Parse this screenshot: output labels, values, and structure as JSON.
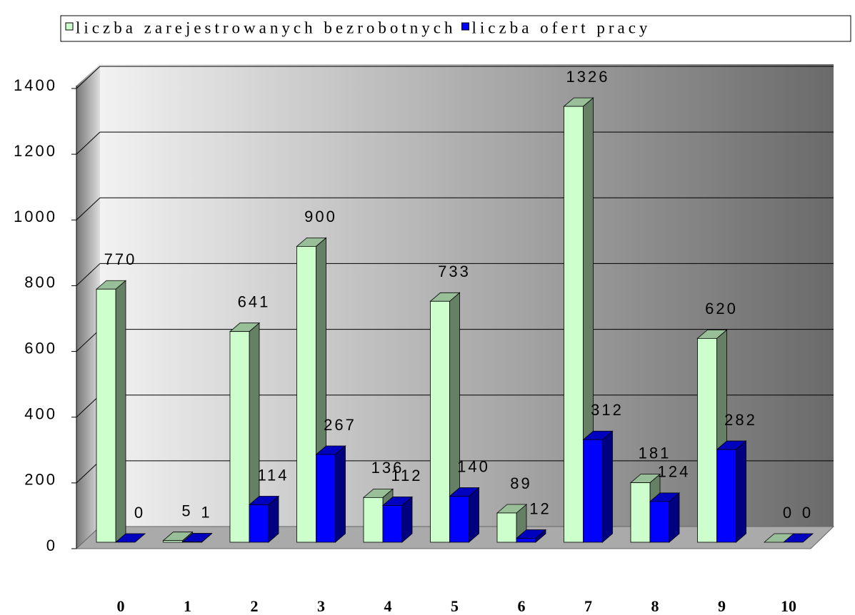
{
  "chart_data": {
    "type": "bar3d",
    "categories": [
      "0",
      "1",
      "2",
      "3",
      "4",
      "5",
      "6",
      "7",
      "8",
      "9",
      "10"
    ],
    "series": [
      {
        "name": "liczba zarejestrowanych bezrobotnych",
        "color": "#ccffcc",
        "values": [
          770,
          5,
          641,
          900,
          136,
          733,
          89,
          1326,
          181,
          620,
          0
        ]
      },
      {
        "name": "liczba ofert pracy",
        "color": "#0000ff",
        "values": [
          0,
          1,
          114,
          267,
          112,
          140,
          12,
          312,
          124,
          282,
          0
        ]
      }
    ],
    "ylim": [
      0,
      1400
    ],
    "yticks": [
      0,
      200,
      400,
      600,
      800,
      1000,
      1200,
      1400
    ],
    "grid": true,
    "legend": "top"
  }
}
